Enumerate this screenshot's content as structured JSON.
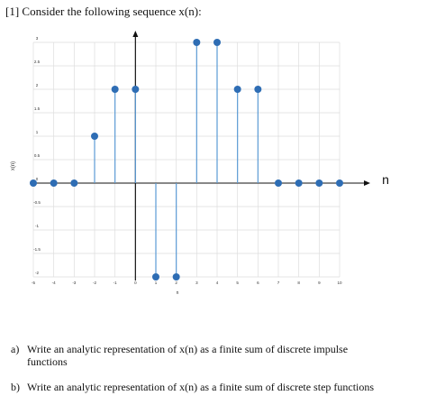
{
  "problem": {
    "title": "[1] Consider the following sequence x(n):"
  },
  "chart_data": {
    "type": "stem",
    "x": [
      -5,
      -4,
      -3,
      -2,
      -1,
      0,
      1,
      2,
      3,
      4,
      5,
      6,
      7,
      8,
      9,
      10
    ],
    "values": [
      0,
      0,
      0,
      1,
      2,
      2,
      -2,
      -2,
      3,
      3,
      2,
      2,
      0,
      0,
      0,
      0
    ],
    "xlabel": "n",
    "ylabel": "x(n)",
    "axis_arrow_label": "n",
    "xlim": [
      -5,
      10
    ],
    "ylim": [
      -2,
      3
    ],
    "xticks": [
      "-5",
      "-4",
      "-3",
      "-2",
      "-1",
      "0",
      "1",
      "2",
      "3",
      "4",
      "5",
      "6",
      "7",
      "8",
      "9",
      "10"
    ],
    "yticks": [
      "3",
      "2.5",
      "2",
      "1.5",
      "1",
      "0.5",
      "0",
      "-0.5",
      "-1",
      "-1.5",
      "-2"
    ],
    "grid": true,
    "colors": {
      "stem": "#5b9bd5",
      "marker": "#2e6db4",
      "grid": "#dddddd",
      "axis": "#111111"
    }
  },
  "questions": [
    {
      "label": "a)",
      "text_line1": "Write an analytic representation of x(n) as a finite sum of discrete impulse",
      "text_line2": "functions"
    },
    {
      "label": "b)",
      "text": "Write an analytic representation of x(n) as a finite sum of discrete step functions"
    }
  ]
}
